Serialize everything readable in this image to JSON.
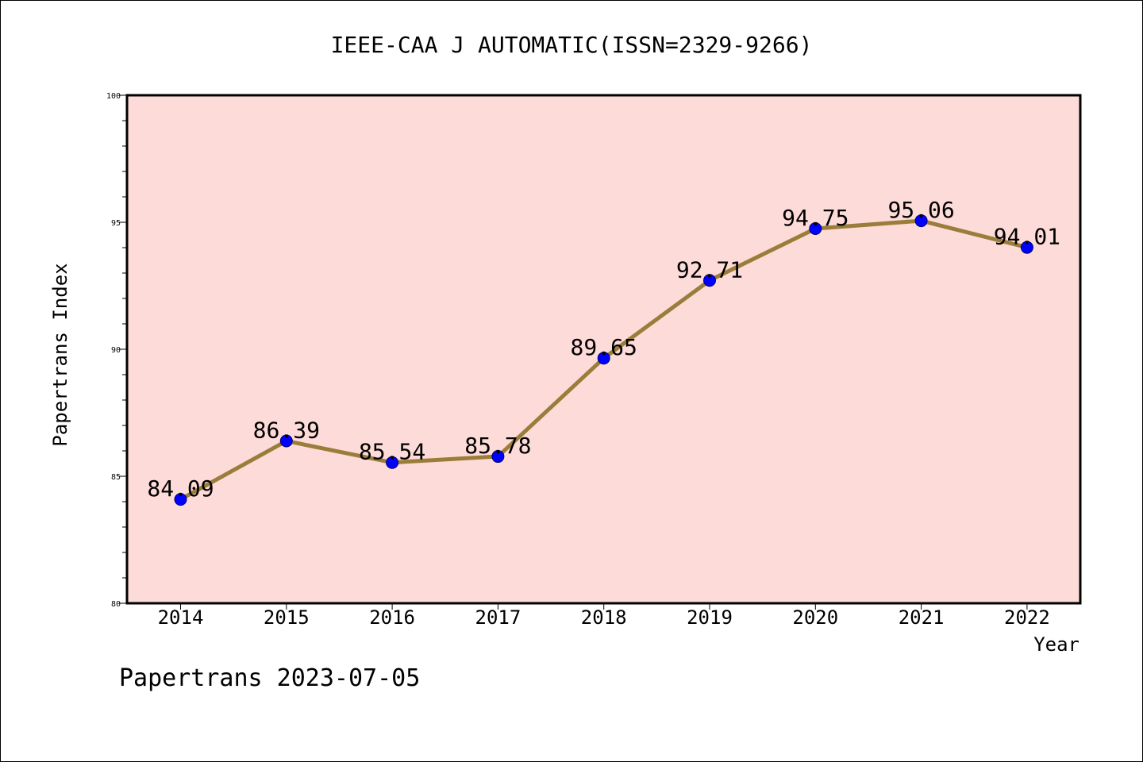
{
  "chart_data": {
    "type": "line",
    "title": "IEEE-CAA J AUTOMATIC(ISSN=2329-9266)",
    "xlabel": "Year",
    "ylabel": "Papertrans Index",
    "categories": [
      "2014",
      "2015",
      "2016",
      "2017",
      "2018",
      "2019",
      "2020",
      "2021",
      "2022"
    ],
    "series": [
      {
        "values": [
          84.09,
          86.39,
          85.54,
          85.78,
          89.65,
          92.71,
          94.75,
          95.06,
          94.01
        ],
        "labels": [
          "84.09",
          "86.39",
          "85.54",
          "85.78",
          "89.65",
          "92.71",
          "94.75",
          "95.06",
          "94.01"
        ]
      }
    ],
    "ylim": [
      80,
      100
    ],
    "yticks": [
      "80",
      "85",
      "90",
      "95",
      "100"
    ],
    "grid": false,
    "colors": {
      "plot_background": "#fddbd8",
      "line": "#9a7d3a",
      "marker": "#0000ff",
      "marker_edge": "#00006e"
    }
  },
  "footer": "Papertrans 2023-07-05"
}
